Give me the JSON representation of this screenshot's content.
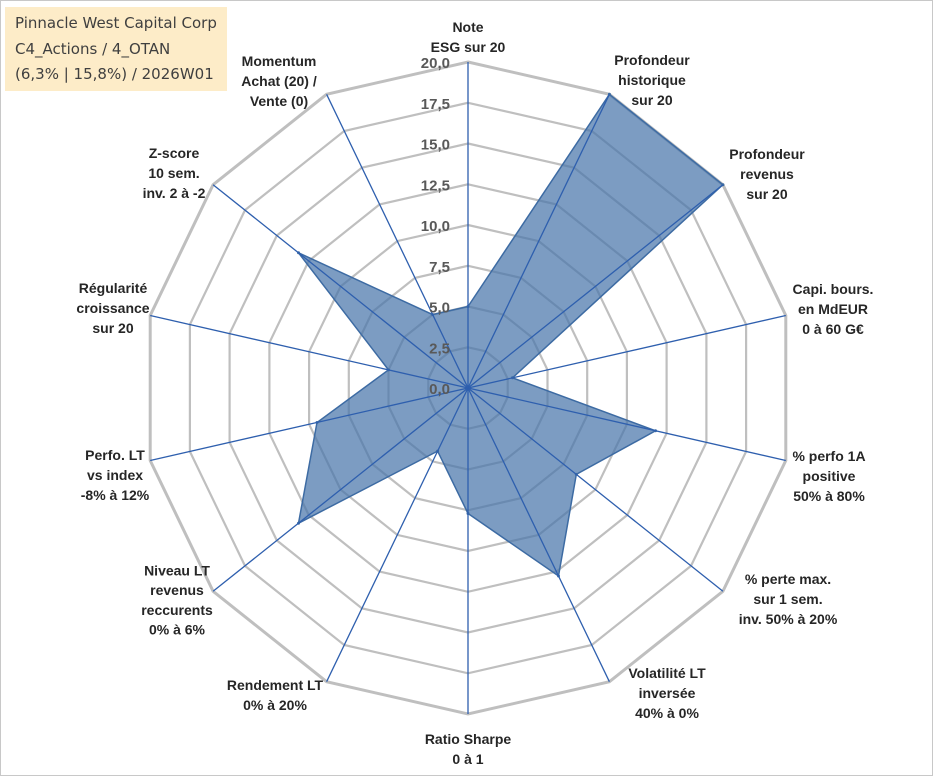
{
  "title": {
    "line1": "Pinnacle West Capital Corp",
    "line2": "C4_Actions / 4_OTAN",
    "line3": "(6,3% | 15,8%) / 2026W01"
  },
  "colors": {
    "fill": "#4a76ab",
    "stroke": "#3d6ba3",
    "spoke": "#2e5fae",
    "grid": "#bfbfbf",
    "title_bg": "#fdecc8"
  },
  "chart_data": {
    "type": "radar",
    "range": [
      0,
      20
    ],
    "tick_step": 2.5,
    "tick_labels": [
      "0,0",
      "2,5",
      "5,0",
      "7,5",
      "10,0",
      "12,5",
      "15,0",
      "17,5",
      "20,0"
    ],
    "axes": [
      {
        "label": [
          "Note",
          "ESG sur 20"
        ],
        "value": 5.0
      },
      {
        "label": [
          "Profondeur",
          "historique",
          "sur 20"
        ],
        "value": 20.0
      },
      {
        "label": [
          "Profondeur",
          "revenus",
          "sur 20"
        ],
        "value": 20.0
      },
      {
        "label": [
          "Capi. bours.",
          "en MdEUR",
          "0 à 60 G€"
        ],
        "value": 2.8
      },
      {
        "label": [
          "% perfo 1A",
          "positive",
          "50% à 80%"
        ],
        "value": 11.8
      },
      {
        "label": [
          "% perte max.",
          "sur 1 sem.",
          "inv. 50% à 20%"
        ],
        "value": 8.5
      },
      {
        "label": [
          "Volatilité LT",
          "inversée",
          "40% à 0%"
        ],
        "value": 12.8
      },
      {
        "label": [
          "Ratio Sharpe",
          "0 à 1"
        ],
        "value": 7.7
      },
      {
        "label": [
          "Rendement LT",
          "0% à 20%"
        ],
        "value": 4.3
      },
      {
        "label": [
          "Niveau LT",
          "revenus",
          "reccurents",
          "0% à 6%"
        ],
        "value": 13.3
      },
      {
        "label": [
          "Perfo. LT",
          "vs index",
          "-8% à 12%"
        ],
        "value": 9.5
      },
      {
        "label": [
          "Régularité",
          "croissance",
          "sur 20"
        ],
        "value": 5.0
      },
      {
        "label": [
          "Z-score",
          "10 sem.",
          "inv. 2 à -2"
        ],
        "value": 13.3
      },
      {
        "label": [
          "Momentum",
          "Achat (20) /",
          "Vente (0)"
        ],
        "value": 5.0
      }
    ]
  }
}
